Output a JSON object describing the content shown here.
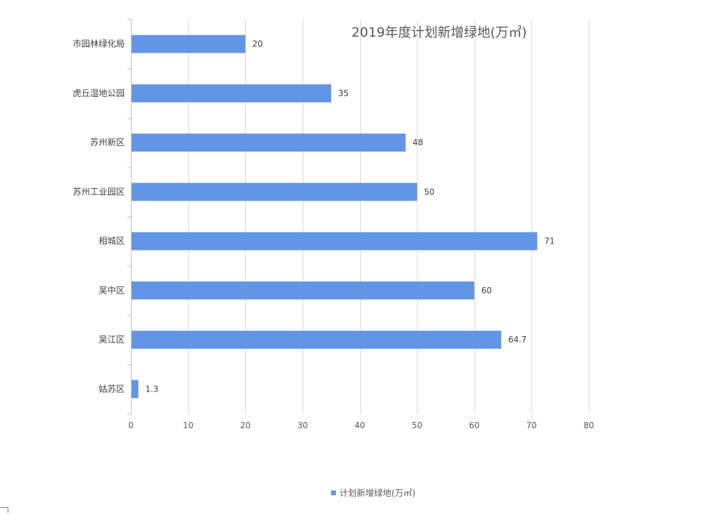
{
  "chart_data": {
    "type": "bar",
    "orientation": "horizontal",
    "title": "2019年度计划新增绿地(万㎡)",
    "categories": [
      "市园林绿化局",
      "虎丘湿地公园",
      "苏州新区",
      "苏州工业园区",
      "相城区",
      "吴中区",
      "吴江区",
      "姑苏区"
    ],
    "series": [
      {
        "name": "计划新增绿地(万㎡)",
        "values": [
          20,
          35,
          48,
          50,
          71,
          60,
          64.7,
          1.3
        ],
        "labels": [
          "20",
          "35",
          "48",
          "50",
          "71",
          "60",
          "64.7",
          "1.3"
        ]
      }
    ],
    "xlim": [
      0,
      80
    ],
    "x_ticks": [
      "0",
      "10",
      "20",
      "30",
      "40",
      "50",
      "60",
      "70",
      "80"
    ],
    "grid": true,
    "legend": "bottom",
    "colors": {
      "bar": "#6295E6",
      "grid": "#D9D9D9",
      "axis": "#BFBFBF"
    }
  }
}
